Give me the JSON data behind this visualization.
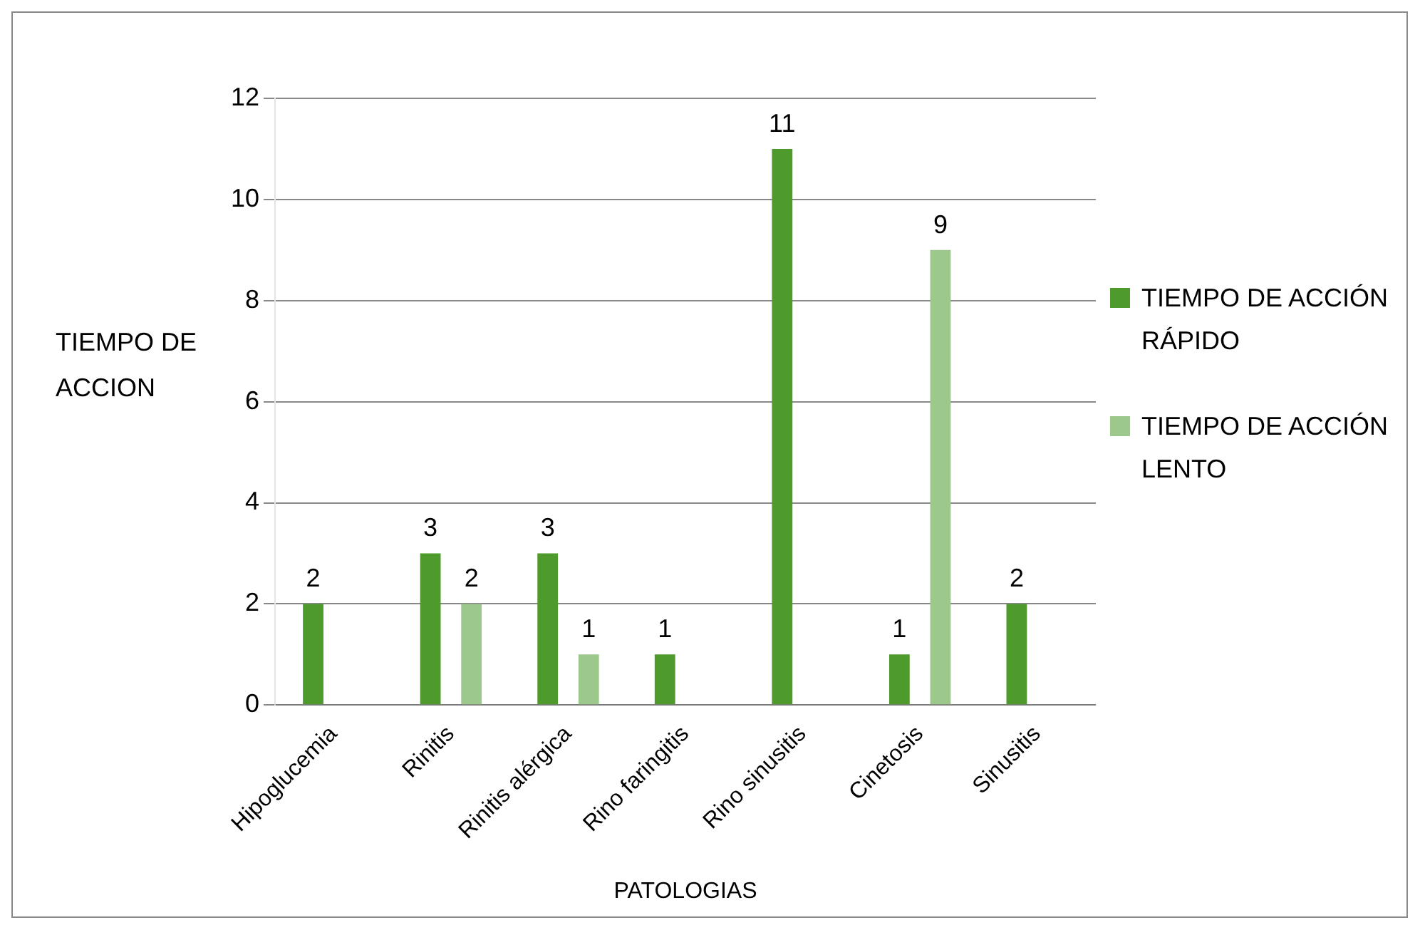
{
  "chart_data": {
    "type": "bar",
    "xlabel": "PATOLOGIAS",
    "ylabel": "TIEMPO DE ACCION",
    "categories": [
      "Hipoglucemia",
      "Rinitis",
      "Rinitis alérgica",
      "Rino faringitis",
      "Rino sinusitis",
      "Cinetosis",
      "Sinusitis"
    ],
    "series": [
      {
        "name": "TIEMPO DE ACCIÓN RÁPIDO",
        "color": "#4f9a2c",
        "values": [
          2,
          3,
          3,
          1,
          11,
          1,
          2
        ]
      },
      {
        "name": "TIEMPO DE ACCIÓN LENTO",
        "color": "#9cc98b",
        "values": [
          null,
          2,
          1,
          null,
          null,
          9,
          null
        ]
      }
    ],
    "ylim": [
      0,
      12
    ],
    "yticks": [
      0,
      2,
      4,
      6,
      8,
      10,
      12
    ],
    "grid": "y",
    "legend": "right",
    "data_labels": true
  }
}
